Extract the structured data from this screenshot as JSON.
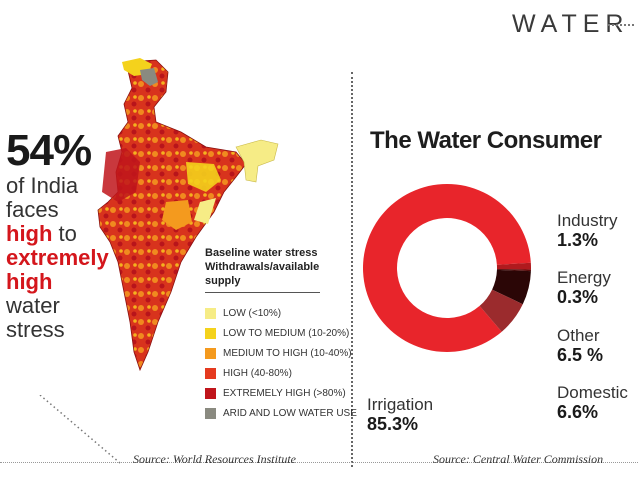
{
  "header": {
    "word": "WATER"
  },
  "left_panel": {
    "stat": {
      "percent": "54%",
      "lines": [
        {
          "text": "of India",
          "emphasis": false
        },
        {
          "text": "faces",
          "emphasis": false
        },
        {
          "text_parts": [
            "high",
            " to"
          ],
          "emphasis": true
        },
        {
          "text": "extremely",
          "emphasis": true
        },
        {
          "text": "high",
          "emphasis": true
        },
        {
          "text": "water",
          "emphasis": false
        },
        {
          "text": "stress",
          "emphasis": false
        }
      ]
    },
    "legend": {
      "title": "Baseline water stress",
      "subtitle": "Withdrawals/available supply",
      "items": [
        {
          "label": "LOW (<10%)",
          "color": "#f6ec86"
        },
        {
          "label": "LOW TO MEDIUM (10-20%)",
          "color": "#f4d21c"
        },
        {
          "label": "MEDIUM TO HIGH (10-40%)",
          "color": "#f49a1e"
        },
        {
          "label": "HIGH (40-80%)",
          "color": "#e53a1f"
        },
        {
          "label": "EXTREMELY HIGH (>80%)",
          "color": "#c0151b"
        },
        {
          "label": "ARID AND LOW WATER USE",
          "color": "#8a8a80"
        }
      ]
    },
    "source": "Source: World Resources Institute"
  },
  "right_panel": {
    "source": "Source: Central Water Commission"
  },
  "chart_data": {
    "type": "pie",
    "title": "The Water Consumer",
    "donut": true,
    "slices": [
      {
        "label": "Irrigation",
        "value": 85.3,
        "value_label": "85.3%",
        "color": "#e8252b"
      },
      {
        "label": "Industry",
        "value": 1.3,
        "value_label": "1.3%",
        "color": "#b01a1e"
      },
      {
        "label": "Energy",
        "value": 0.3,
        "value_label": "0.3%",
        "color": "#5a0c0c"
      },
      {
        "label": "Other",
        "value": 6.5,
        "value_label": "6.5 %",
        "color": "#2b0606"
      },
      {
        "label": "Domestic",
        "value": 6.6,
        "value_label": "6.6%",
        "color": "#9b2b2d"
      }
    ],
    "legend_position": "right of donut, irrigation label bottom-left"
  }
}
